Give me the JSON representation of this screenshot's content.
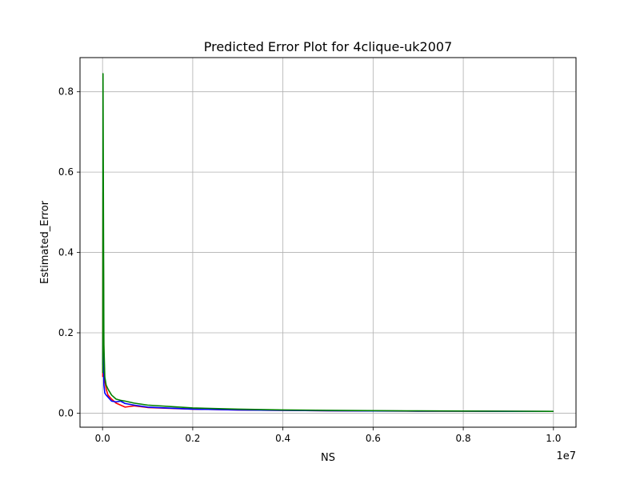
{
  "chart_data": {
    "type": "line",
    "title": "Predicted Error Plot for 4clique-uk2007",
    "xlabel": "NS",
    "ylabel": "Estimated_Error",
    "x_offset_label": "1e7",
    "xlim": [
      -0.05,
      1.05
    ],
    "ylim": [
      -0.035,
      0.885
    ],
    "xticks": [
      0.0,
      0.2,
      0.4,
      0.6,
      0.8,
      1.0
    ],
    "xtick_labels": [
      "0.0",
      "0.2",
      "0.4",
      "0.6",
      "0.8",
      "1.0"
    ],
    "yticks": [
      0.0,
      0.2,
      0.4,
      0.6,
      0.8
    ],
    "ytick_labels": [
      "0.0",
      "0.2",
      "0.4",
      "0.6",
      "0.8"
    ],
    "grid": true,
    "legend": "none",
    "series": [
      {
        "color": "#ff0000",
        "x": [
          0.0005,
          0.001,
          0.002,
          0.003,
          0.005,
          0.008,
          0.012,
          0.02,
          0.03,
          0.04,
          0.05,
          0.07,
          0.1,
          0.2,
          0.3,
          0.4,
          0.5,
          0.6,
          0.7,
          0.8,
          0.9,
          1.0
        ],
        "y": [
          0.09,
          0.55,
          0.35,
          0.13,
          0.08,
          0.06,
          0.045,
          0.035,
          0.025,
          0.02,
          0.015,
          0.018,
          0.014,
          0.01,
          0.008,
          0.007,
          0.006,
          0.0055,
          0.005,
          0.0048,
          0.0045,
          0.0043
        ]
      },
      {
        "color": "#0000ff",
        "x": [
          0.0005,
          0.001,
          0.002,
          0.003,
          0.005,
          0.008,
          0.012,
          0.02,
          0.03,
          0.04,
          0.05,
          0.07,
          0.1,
          0.2,
          0.3,
          0.4,
          0.5,
          0.6,
          0.7,
          0.8,
          0.9,
          1.0
        ],
        "y": [
          0.12,
          0.2,
          0.15,
          0.07,
          0.05,
          0.045,
          0.04,
          0.03,
          0.028,
          0.03,
          0.024,
          0.02,
          0.015,
          0.01,
          0.008,
          0.007,
          0.006,
          0.0055,
          0.005,
          0.0048,
          0.0045,
          0.0043
        ]
      },
      {
        "color": "#008000",
        "x": [
          0.0005,
          0.001,
          0.002,
          0.003,
          0.005,
          0.008,
          0.012,
          0.02,
          0.03,
          0.04,
          0.05,
          0.07,
          0.1,
          0.2,
          0.3,
          0.4,
          0.5,
          0.6,
          0.7,
          0.8,
          0.9,
          1.0
        ],
        "y": [
          0.1,
          0.845,
          0.5,
          0.17,
          0.09,
          0.07,
          0.06,
          0.045,
          0.035,
          0.032,
          0.03,
          0.025,
          0.02,
          0.013,
          0.01,
          0.008,
          0.007,
          0.0062,
          0.0056,
          0.0052,
          0.0048,
          0.0045
        ]
      }
    ]
  }
}
